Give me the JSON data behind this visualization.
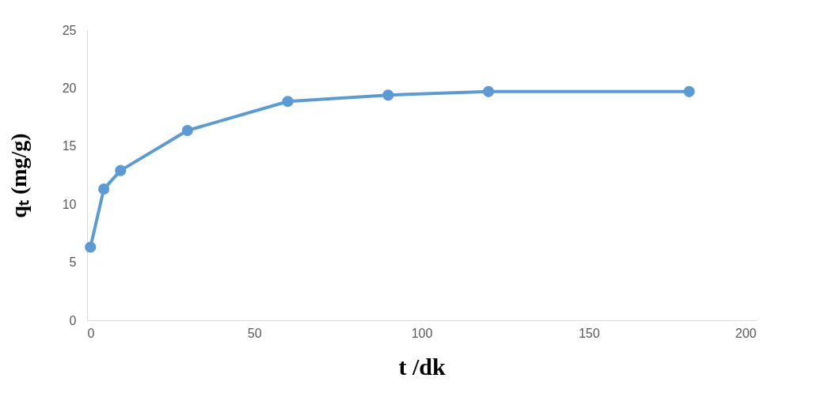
{
  "chart_data": {
    "type": "line",
    "xlabel": "t /dk",
    "ylabel": "qₜ (mg/g)",
    "x": [
      1,
      5,
      10,
      30,
      60,
      90,
      120,
      180
    ],
    "series": [
      {
        "color": "#5b9bd5",
        "values": [
          6.3,
          11.3,
          12.9,
          16.35,
          18.85,
          19.4,
          19.7,
          19.7
        ]
      }
    ],
    "xlim": [
      0,
      200
    ],
    "xticks": [
      0,
      50,
      100,
      150,
      200
    ],
    "ylim": [
      0,
      25
    ],
    "yticks": [
      0,
      5,
      10,
      15,
      20,
      25
    ],
    "grid": false,
    "marker": "circle",
    "line_style": "solid"
  }
}
